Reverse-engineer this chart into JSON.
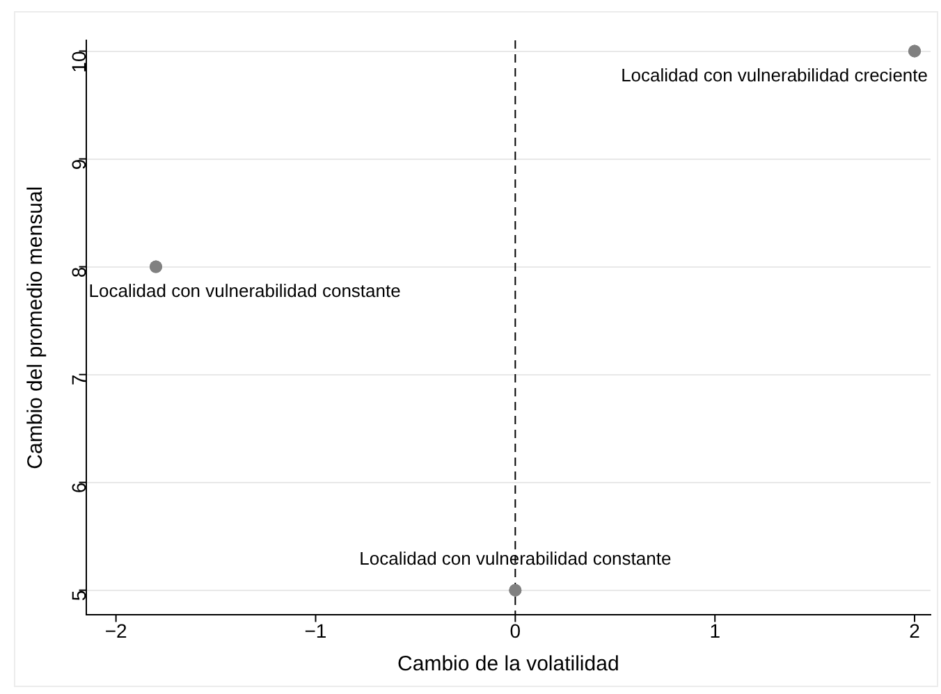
{
  "chart_data": {
    "type": "scatter",
    "xlabel": "Cambio de la volatilidad",
    "ylabel": "Cambio del promedio mensual",
    "series": [
      {
        "color": "#808080",
        "x": [
          -1.8,
          2,
          0
        ],
        "values": [
          8,
          10,
          5
        ]
      }
    ],
    "xlim": [
      -2.15,
      2.08
    ],
    "xticks": [
      {
        "value": -2,
        "label": "−2"
      },
      {
        "value": -1,
        "label": "−1"
      },
      0,
      1,
      2
    ],
    "ylim": [
      4.77,
      10.1
    ],
    "yticks": [
      5,
      6,
      7,
      8,
      9,
      10
    ],
    "grid": "y",
    "marker": "circle",
    "legend": false,
    "ref_lines": [
      {
        "axis": "x",
        "value": 0,
        "line_style": "dashed",
        "color": "#000000"
      }
    ],
    "annotations": [
      {
        "text": "Localidad con vulnerabilidad constante",
        "x": -1.8,
        "y": 8
      },
      {
        "text": "Localidad con vulnerabilidad creciente",
        "x": 2,
        "y": 10
      },
      {
        "text": "Localidad con vulnerabilidad constante",
        "x": 0,
        "y": 5
      }
    ]
  }
}
